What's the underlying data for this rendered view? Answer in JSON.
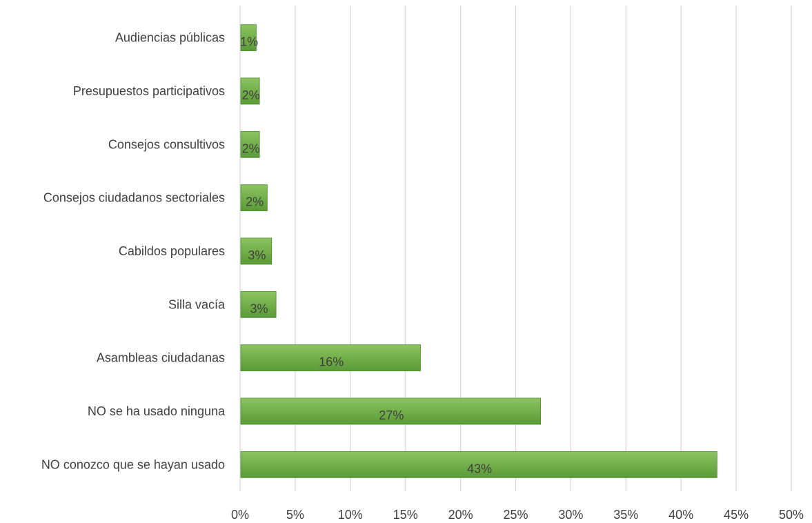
{
  "chart_data": {
    "type": "bar",
    "orientation": "horizontal",
    "title": "",
    "xlabel": "",
    "ylabel": "",
    "categories": [
      "Audiencias públicas",
      "Presupuestos participativos",
      "Consejos consultivos",
      "Consejos ciudadanos sectoriales",
      "Cabildos populares",
      "Silla vacía",
      "Asambleas ciudadanas",
      "NO se ha usado ninguna",
      "NO conozco que se hayan usado"
    ],
    "values": [
      1.4,
      1.7,
      1.7,
      2.4,
      2.8,
      3.2,
      16.3,
      27.2,
      43.2
    ],
    "data_labels": [
      "1%",
      "2%",
      "2%",
      "2%",
      "3%",
      "3%",
      "16%",
      "27%",
      "43%"
    ],
    "xlim": [
      0,
      50
    ],
    "ticks": [
      0,
      5,
      10,
      15,
      20,
      25,
      30,
      35,
      40,
      45,
      50
    ],
    "tick_labels": [
      "0%",
      "5%",
      "10%",
      "15%",
      "20%",
      "25%",
      "30%",
      "35%",
      "40%",
      "45%",
      "50%"
    ],
    "grid": "vertical",
    "legend": "none",
    "colors": {
      "bar_top": "#8cc460",
      "bar_bottom": "#5a9a36",
      "bar_edge": "#4e8a2e",
      "grid": "#d9d9d9",
      "text": "#404040"
    }
  }
}
